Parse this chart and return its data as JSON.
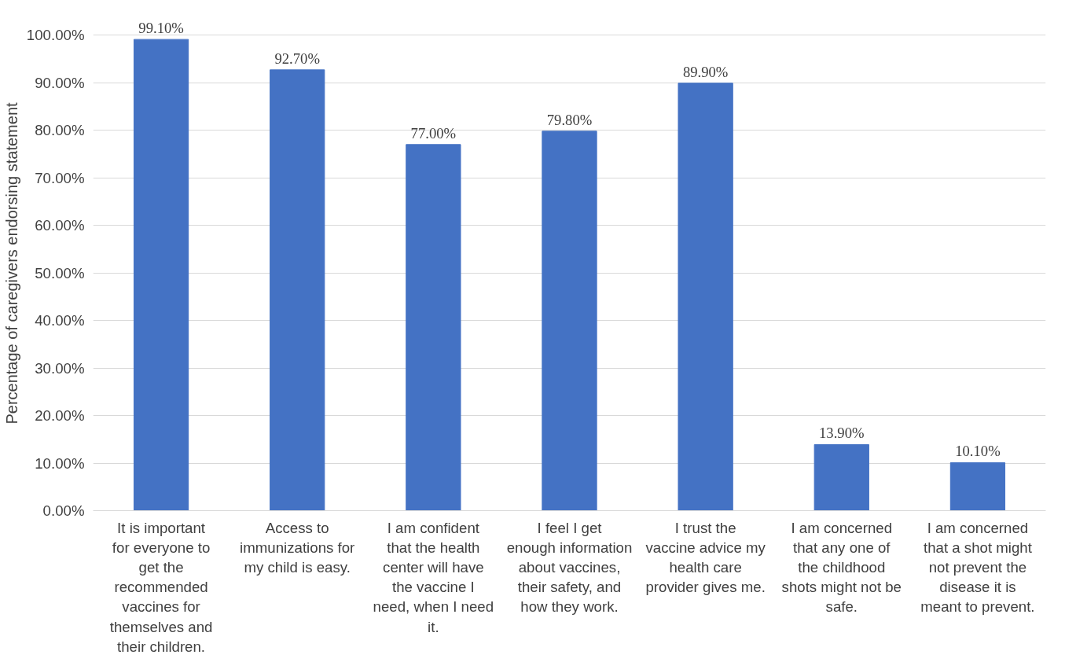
{
  "chart_data": {
    "type": "bar",
    "ylabel": "Percentage of caregivers endorsing statement",
    "categories": [
      "It is important for everyone to get the recommended vaccines for themselves and their children.",
      "Access to immunizations for my child is easy.",
      "I am confident that the health center will have the vaccine I need, when I need it.",
      "I feel I get enough information about vaccines, their safety, and how they work.",
      "I trust the vaccine advice my health care provider gives me.",
      "I am concerned that any one of the childhood shots might not be safe.",
      "I am concerned that a shot might not prevent the disease it is meant to prevent."
    ],
    "values": [
      99.1,
      92.7,
      77.0,
      79.8,
      89.9,
      13.9,
      10.1
    ],
    "value_labels": [
      "99.10%",
      "92.70%",
      "77.00%",
      "79.80%",
      "89.90%",
      "13.90%",
      "10.10%"
    ],
    "color": "#4472c4",
    "ylim": [
      0,
      100
    ],
    "yticks": [
      {
        "value": 0,
        "label": "0.00%"
      },
      {
        "value": 10,
        "label": "10.00%"
      },
      {
        "value": 20,
        "label": "20.00%"
      },
      {
        "value": 30,
        "label": "30.00%"
      },
      {
        "value": 40,
        "label": "40.00%"
      },
      {
        "value": 50,
        "label": "50.00%"
      },
      {
        "value": 60,
        "label": "60.00%"
      },
      {
        "value": 70,
        "label": "70.00%"
      },
      {
        "value": 80,
        "label": "80.00%"
      },
      {
        "value": 90,
        "label": "90.00%"
      },
      {
        "value": 100,
        "label": "100.00%"
      }
    ],
    "grid": "y"
  }
}
